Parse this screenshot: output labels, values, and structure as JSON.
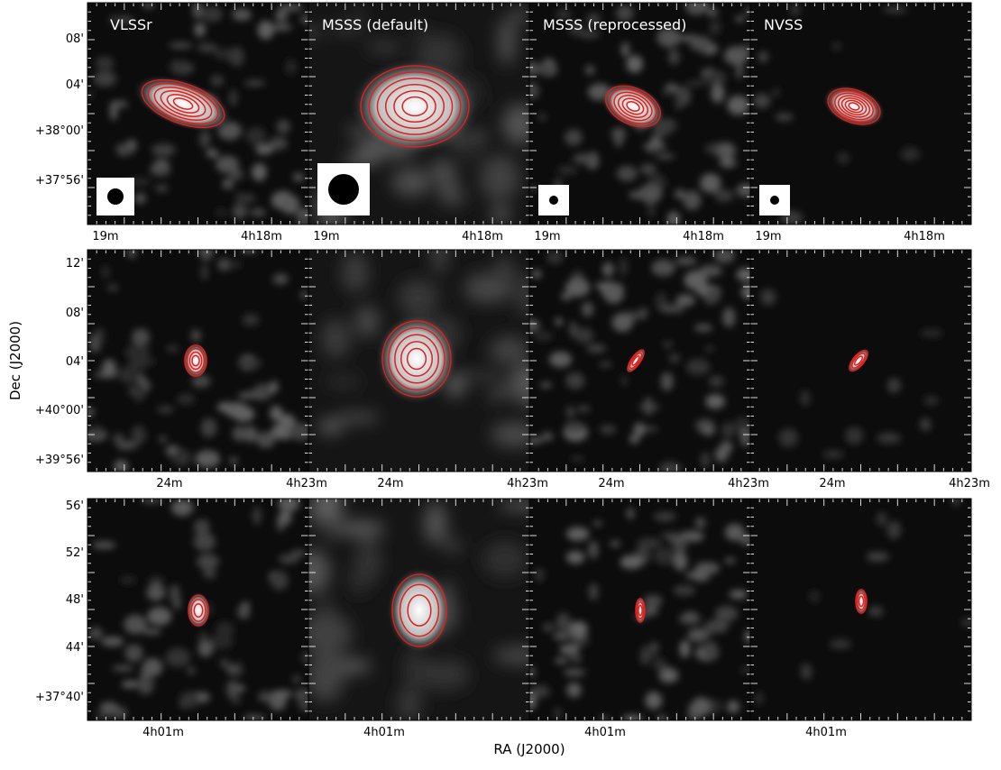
{
  "axes": {
    "x_label": "RA (J2000)",
    "y_label": "Dec (J2000)"
  },
  "columns": [
    "VLSSr",
    "MSSS (default)",
    "MSSS (reprocessed)",
    "NVSS"
  ],
  "rows": [
    {
      "y_ticks": [
        "08'",
        "04'",
        "+38°00'",
        "+37°56'"
      ],
      "x_ticks": [
        "19m",
        "4h18m"
      ]
    },
    {
      "y_ticks": [
        "12'",
        "08'",
        "04'",
        "+40°00'",
        "+39°56'"
      ],
      "x_ticks": [
        "24m",
        "4h23m"
      ]
    },
    {
      "y_ticks": [
        "56'",
        "52'",
        "48'",
        "44'",
        "+37°40'"
      ],
      "x_ticks": [
        "4h01m"
      ]
    }
  ]
}
